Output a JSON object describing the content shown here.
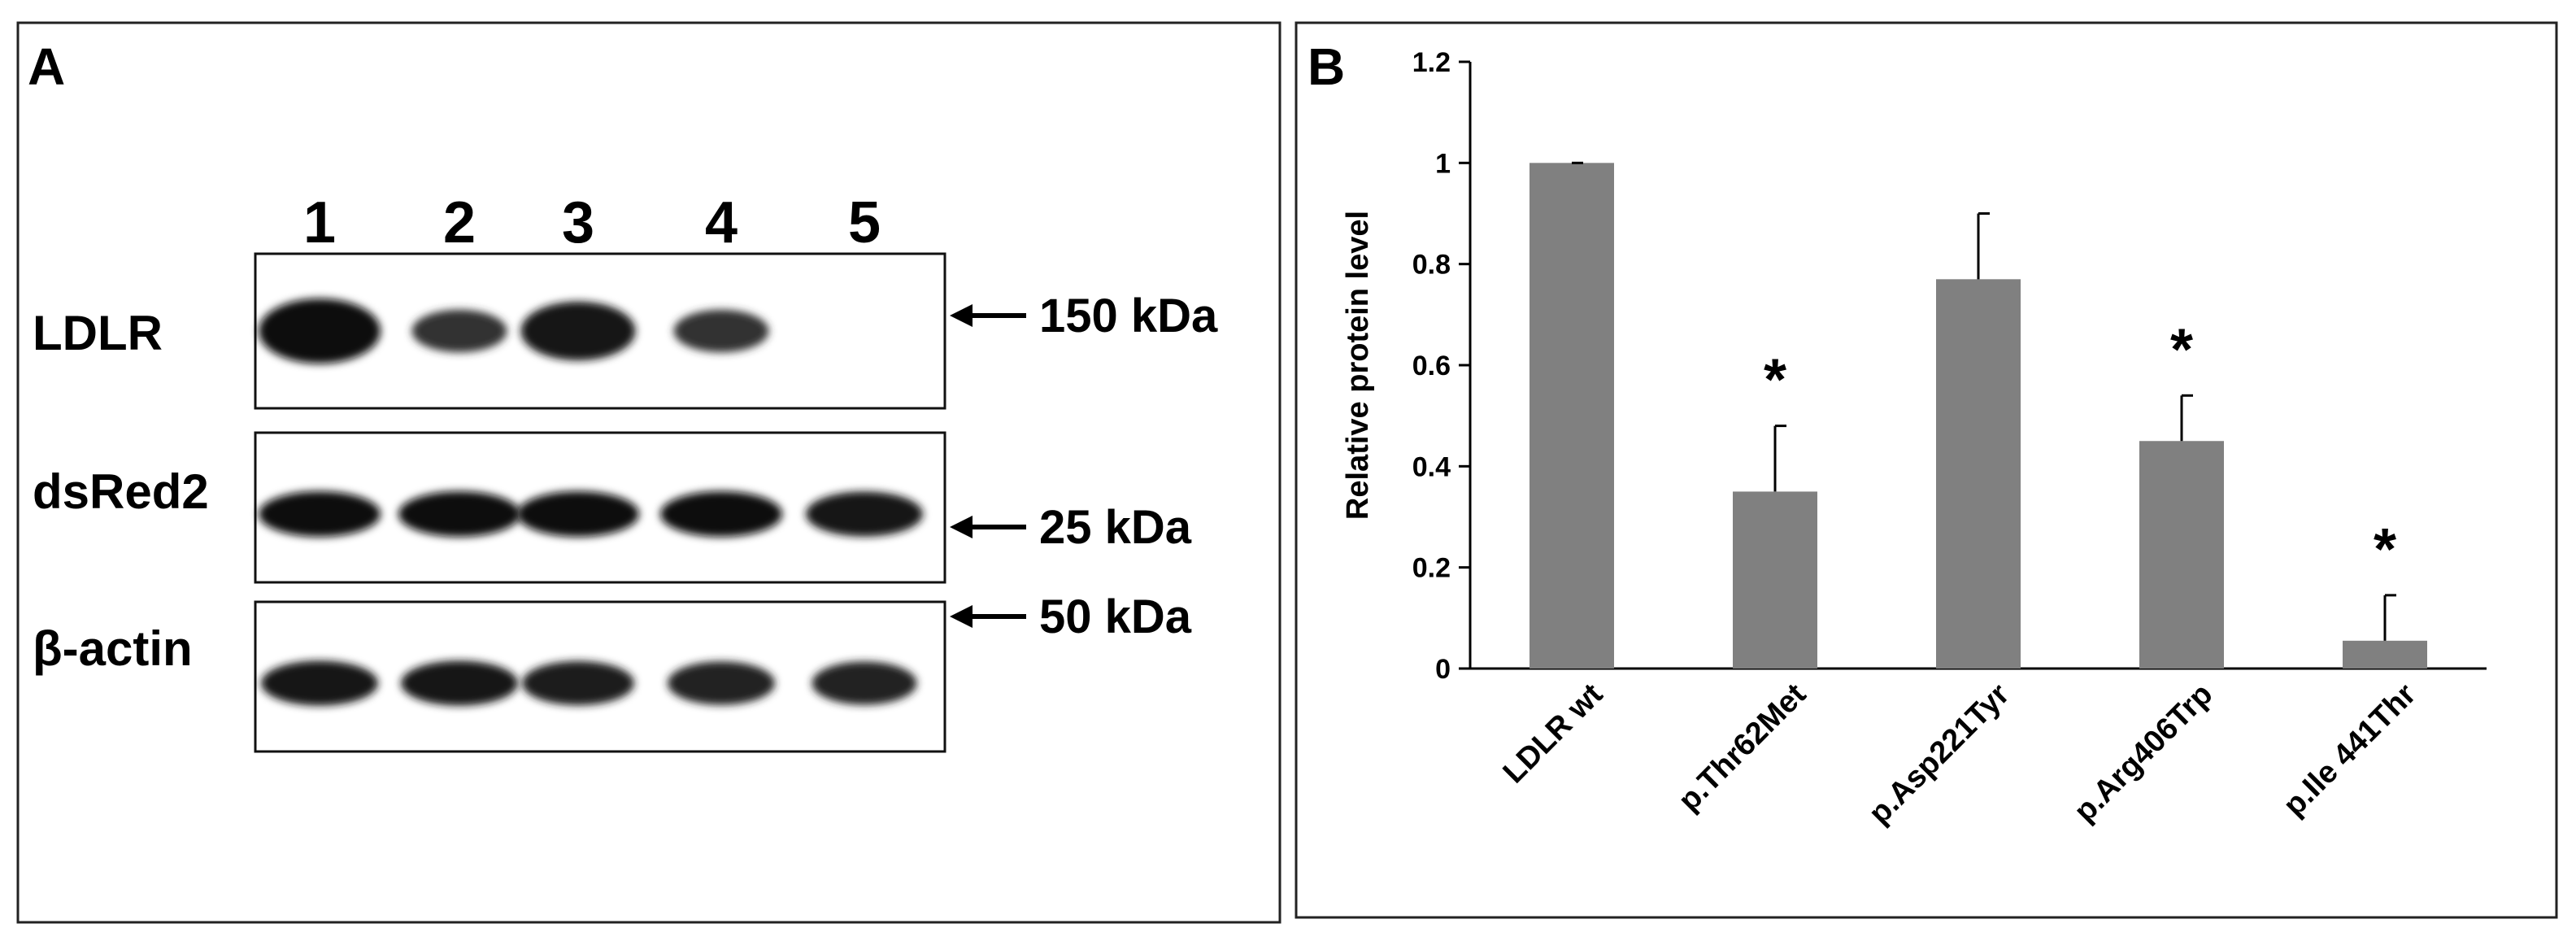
{
  "panel_a": {
    "letter": "A",
    "lanes": [
      "1",
      "2",
      "3",
      "4",
      "5"
    ],
    "rows": [
      {
        "label": "LDLR",
        "size": "150 kDa",
        "intensities": [
          1.0,
          0.45,
          0.85,
          0.45,
          0.0
        ]
      },
      {
        "label": "dsRed2",
        "size": "25 kDa",
        "intensities": [
          1.0,
          1.0,
          1.0,
          1.0,
          0.9
        ]
      },
      {
        "label": "β-actin",
        "size": "50 kDa",
        "intensities": [
          0.9,
          0.9,
          0.8,
          0.7,
          0.65
        ]
      }
    ]
  },
  "panel_b": {
    "letter": "B"
  },
  "chart_data": {
    "type": "bar",
    "title": "",
    "xlabel": "",
    "ylabel": "Relative protein level",
    "categories": [
      "LDLR wt",
      "p.Thr62Met",
      "p.Asp221Tyr",
      "p.Arg406Trp",
      "p.Ile 441Thr"
    ],
    "values": [
      1.0,
      0.35,
      0.77,
      0.45,
      0.055
    ],
    "errors": [
      0.0,
      0.13,
      0.13,
      0.09,
      0.09
    ],
    "significance": [
      "",
      "*",
      "",
      "*",
      "*"
    ],
    "ylim": [
      0,
      1.2
    ],
    "yticks": [
      "0",
      "0.2",
      "0.4",
      "0.6",
      "0.8",
      "1",
      "1.2"
    ],
    "bar_color": "#808080",
    "grid": false,
    "legend": "none"
  }
}
